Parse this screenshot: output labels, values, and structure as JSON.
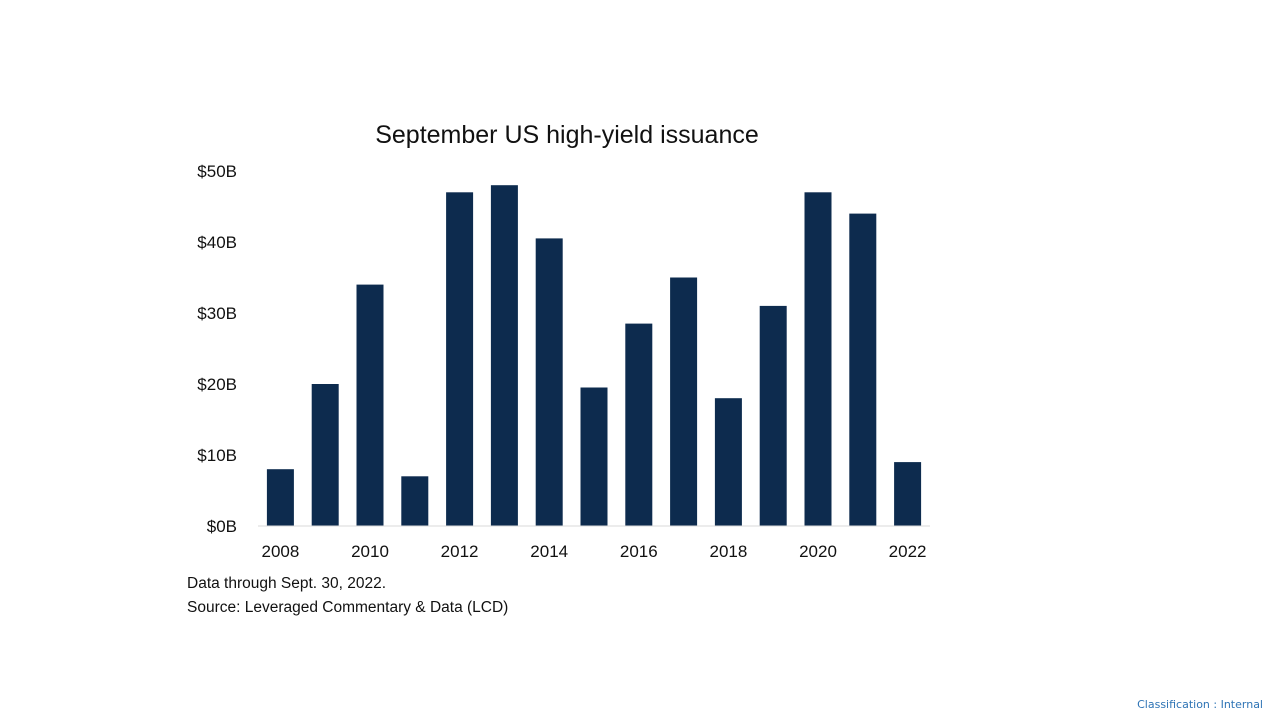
{
  "chart_data": {
    "type": "bar",
    "title": "September US high-yield issuance",
    "xlabel": "",
    "ylabel": "",
    "categories": [
      "2008",
      "2009",
      "2010",
      "2011",
      "2012",
      "2013",
      "2014",
      "2015",
      "2016",
      "2017",
      "2018",
      "2019",
      "2020",
      "2021",
      "2022"
    ],
    "x_tick_labels": [
      "2008",
      "2010",
      "2012",
      "2014",
      "2016",
      "2018",
      "2020",
      "2022"
    ],
    "values": [
      8,
      20,
      34,
      7,
      47,
      48,
      40.5,
      19.5,
      28.5,
      35,
      18,
      31,
      47,
      44,
      9
    ],
    "ylim": [
      0,
      50
    ],
    "y_ticks": [
      0,
      10,
      20,
      30,
      40,
      50
    ],
    "y_tick_labels": [
      "$0B",
      "$10B",
      "$20B",
      "$30B",
      "$40B",
      "$50B"
    ],
    "grid": false,
    "legend": "none",
    "bar_color": "#0d2b4e"
  },
  "notes": {
    "data_through": "Data through Sept. 30, 2022.",
    "source": "Source: Leveraged Commentary & Data (LCD)"
  },
  "footer": {
    "classification": "Classification : Internal"
  }
}
